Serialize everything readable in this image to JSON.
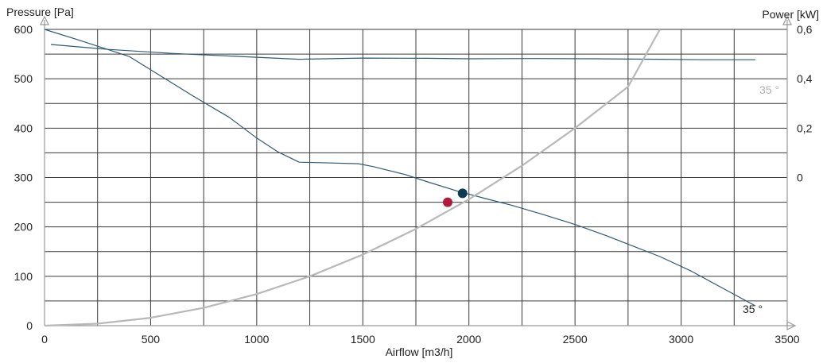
{
  "chart_data": {
    "type": "line",
    "y_left_label": "Pressure [Pa]",
    "y_right_label": "Power [kW]",
    "xlabel": "Airflow [m3/h]",
    "xlim": [
      0,
      3500
    ],
    "ylim_left": [
      0,
      600
    ],
    "x_ticks": [
      "0",
      "500",
      "1000",
      "1500",
      "2000",
      "2500",
      "3000",
      "3500"
    ],
    "y_left_ticks": [
      "0",
      "100",
      "200",
      "300",
      "400",
      "500",
      "600"
    ],
    "y_right_ticks": [
      "0,6",
      "0,4",
      "0,2",
      "0"
    ],
    "y_right_tick_values": [
      0.6,
      0.4,
      0.2,
      0
    ],
    "y_right_range": [
      -0.6,
      0.6
    ],
    "grid": true,
    "colors": {
      "grid": "#3a3a3a",
      "axis": "#999999",
      "pressure_curve": "#2e5a73",
      "power_curve": "#2e5a73",
      "system_curve": "#b8b8b8",
      "operating_point": "#0d3a52",
      "duty_point": "#b31b3c"
    },
    "series": [
      {
        "name": "35 °",
        "kind": "pressure",
        "x": [
          0,
          150,
          400,
          700,
          870,
          1000,
          1100,
          1200,
          1300,
          1480,
          1550,
          1700,
          1800,
          1950,
          2100,
          2200,
          2350,
          2500,
          2650,
          2750,
          2900,
          3050,
          3200,
          3350
        ],
        "y": [
          600,
          580,
          545,
          465,
          422,
          380,
          352,
          331,
          330,
          328,
          322,
          306,
          292,
          272,
          255,
          244,
          225,
          205,
          182,
          165,
          140,
          110,
          75,
          40
        ]
      },
      {
        "name": "35 °",
        "kind": "power",
        "x": [
          30,
          300,
          600,
          900,
          1200,
          1500,
          1800,
          2000,
          2300,
          2600,
          2900,
          3100,
          3350
        ],
        "y": [
          0.539,
          0.519,
          0.503,
          0.491,
          0.479,
          0.484,
          0.483,
          0.481,
          0.482,
          0.481,
          0.479,
          0.477,
          0.477
        ]
      },
      {
        "name": "",
        "kind": "system",
        "x": [
          0,
          250,
          500,
          750,
          1000,
          1250,
          1500,
          1750,
          2000,
          2250,
          2500,
          2750,
          2900
        ],
        "y": [
          0,
          4,
          16,
          36,
          64,
          100,
          144,
          196,
          256,
          324,
          400,
          484,
          600
        ]
      }
    ],
    "points": [
      {
        "name": "operating point",
        "x": 1970,
        "y": 268
      },
      {
        "name": "duty point",
        "x": 1900,
        "y": 250
      }
    ]
  }
}
